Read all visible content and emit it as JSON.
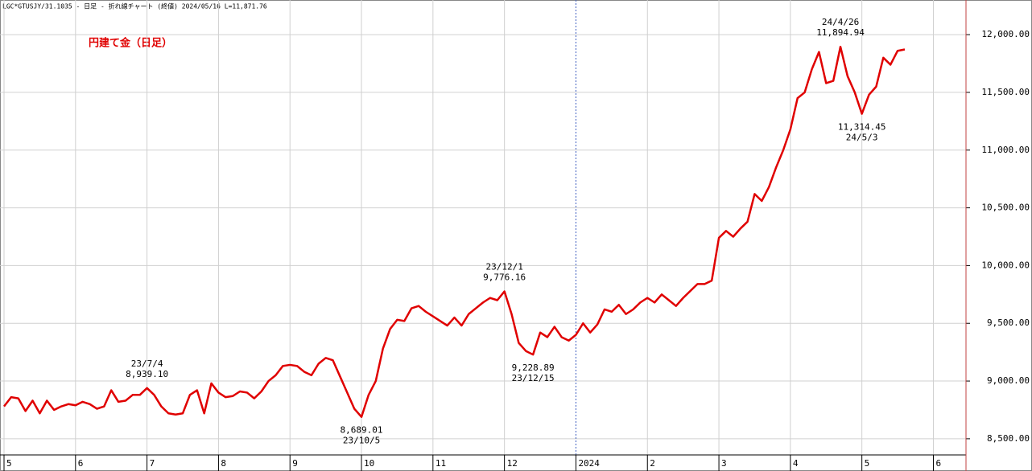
{
  "header": "LGC*GTUSJY/31.1035 - 日足 - 折れ線チャート (終値)  2024/05/16  L=11,871.76",
  "chart_data": {
    "type": "line",
    "title": "円建て金（日足）",
    "categories": [
      "5",
      null,
      null,
      null,
      null,
      null,
      null,
      null,
      null,
      null,
      "6",
      null,
      null,
      null,
      null,
      null,
      null,
      null,
      null,
      null,
      "7",
      null,
      null,
      null,
      null,
      null,
      null,
      null,
      null,
      null,
      "8",
      null,
      null,
      null,
      null,
      null,
      null,
      null,
      null,
      null,
      "9",
      null,
      null,
      null,
      null,
      null,
      null,
      null,
      null,
      null,
      "10",
      null,
      null,
      null,
      null,
      null,
      null,
      null,
      null,
      null,
      "11",
      null,
      null,
      null,
      null,
      null,
      null,
      null,
      null,
      null,
      "12",
      null,
      null,
      null,
      null,
      null,
      null,
      null,
      null,
      null,
      "2024",
      null,
      null,
      null,
      null,
      null,
      null,
      null,
      null,
      null,
      "2",
      null,
      null,
      null,
      null,
      null,
      null,
      null,
      null,
      null,
      "3",
      null,
      null,
      null,
      null,
      null,
      null,
      null,
      null,
      null,
      "4",
      null,
      null,
      null,
      null,
      null,
      null,
      null,
      null,
      null,
      "5",
      null,
      null,
      null,
      null,
      null,
      null,
      null,
      null,
      null,
      "6",
      null,
      null,
      null,
      null
    ],
    "values": [
      8780,
      8860,
      8850,
      8740,
      8830,
      8720,
      8830,
      8750,
      8780,
      8800,
      8790,
      8820,
      8800,
      8760,
      8780,
      8920,
      8820,
      8830,
      8880,
      8880,
      8939.1,
      8880,
      8780,
      8720,
      8710,
      8720,
      8880,
      8920,
      8720,
      8980,
      8900,
      8860,
      8870,
      8910,
      8900,
      8850,
      8910,
      9000,
      9050,
      9130,
      9140,
      9130,
      9080,
      9050,
      9150,
      9200,
      9180,
      9040,
      8900,
      8760,
      8689.01,
      8880,
      9000,
      9280,
      9450,
      9530,
      9520,
      9630,
      9650,
      9600,
      9560,
      9520,
      9480,
      9550,
      9480,
      9580,
      9630,
      9680,
      9720,
      9700,
      9776.16,
      9580,
      9330,
      9260,
      9228.89,
      9420,
      9380,
      9470,
      9380,
      9350,
      9400,
      9500,
      9420,
      9490,
      9620,
      9600,
      9660,
      9580,
      9620,
      9680,
      9720,
      9680,
      9750,
      9700,
      9650,
      9720,
      9780,
      9840,
      9840,
      9870,
      10240,
      10300,
      10250,
      10320,
      10380,
      10620,
      10560,
      10680,
      10850,
      11000,
      11180,
      11450,
      11500,
      11700,
      11850,
      11580,
      11600,
      11894.94,
      11640,
      11500,
      11314.45,
      11480,
      11550,
      11800,
      11740,
      11860,
      11871.76,
      null,
      null,
      null,
      null,
      null,
      null,
      null,
      null
    ],
    "value_labels": [
      null,
      null,
      null,
      null,
      null,
      null,
      null,
      null,
      null,
      null,
      null,
      null,
      null,
      null,
      null,
      null,
      null,
      null,
      null,
      null,
      "8,939.10",
      null,
      null,
      null,
      null,
      null,
      null,
      null,
      null,
      null,
      null,
      null,
      null,
      null,
      null,
      null,
      null,
      null,
      null,
      null,
      null,
      null,
      null,
      null,
      null,
      null,
      null,
      null,
      null,
      null,
      "8,689.01",
      null,
      null,
      null,
      null,
      null,
      null,
      null,
      null,
      null,
      null,
      null,
      null,
      null,
      null,
      null,
      null,
      null,
      null,
      null,
      "9,776.16",
      null,
      null,
      null,
      "9,228.89",
      null,
      null,
      null,
      null,
      null,
      null,
      null,
      null,
      null,
      null,
      null,
      null,
      null,
      null,
      null,
      null,
      null,
      null,
      null,
      null,
      null,
      null,
      null,
      null,
      null,
      null,
      null,
      null,
      null,
      null,
      null,
      null,
      null,
      null,
      null,
      null,
      null,
      null,
      null,
      null,
      null,
      null,
      "11,894.94",
      null,
      null,
      "11,314.45",
      null,
      null,
      null,
      null,
      null,
      null,
      null,
      null,
      null,
      null,
      null,
      null,
      null,
      null
    ],
    "date_labels": [
      null,
      null,
      null,
      null,
      null,
      null,
      null,
      null,
      null,
      null,
      null,
      null,
      null,
      null,
      null,
      null,
      null,
      null,
      null,
      null,
      "23/7/4",
      null,
      null,
      null,
      null,
      null,
      null,
      null,
      null,
      null,
      null,
      null,
      null,
      null,
      null,
      null,
      null,
      null,
      null,
      null,
      null,
      null,
      null,
      null,
      null,
      null,
      null,
      null,
      null,
      null,
      "23/10/5",
      null,
      null,
      null,
      null,
      null,
      null,
      null,
      null,
      null,
      null,
      null,
      null,
      null,
      null,
      null,
      null,
      null,
      null,
      null,
      "23/12/1",
      null,
      null,
      null,
      "23/12/15",
      null,
      null,
      null,
      null,
      null,
      null,
      null,
      null,
      null,
      null,
      null,
      null,
      null,
      null,
      null,
      null,
      null,
      null,
      null,
      null,
      null,
      null,
      null,
      null,
      null,
      null,
      null,
      null,
      null,
      null,
      null,
      null,
      null,
      null,
      null,
      null,
      null,
      null,
      null,
      null,
      null,
      null,
      "24/4/26",
      null,
      null,
      "24/5/3",
      null,
      null,
      null,
      null,
      null,
      null,
      null,
      null,
      null,
      null,
      null,
      null,
      null,
      null
    ],
    "color": "#e00000",
    "ylim": [
      8360,
      12300
    ],
    "yticks": [
      {
        "value": 8500,
        "label": "8,500.00"
      },
      {
        "value": 9000,
        "label": "9,000.00"
      },
      {
        "value": 9500,
        "label": "9,500.00"
      },
      {
        "value": 10000,
        "label": "10,000.00"
      },
      {
        "value": 10500,
        "label": "10,500.00"
      },
      {
        "value": 11000,
        "label": "11,000.00"
      },
      {
        "value": 11500,
        "label": "11,500.00"
      },
      {
        "value": 12000,
        "label": "12,000.00"
      }
    ],
    "grid": true
  }
}
